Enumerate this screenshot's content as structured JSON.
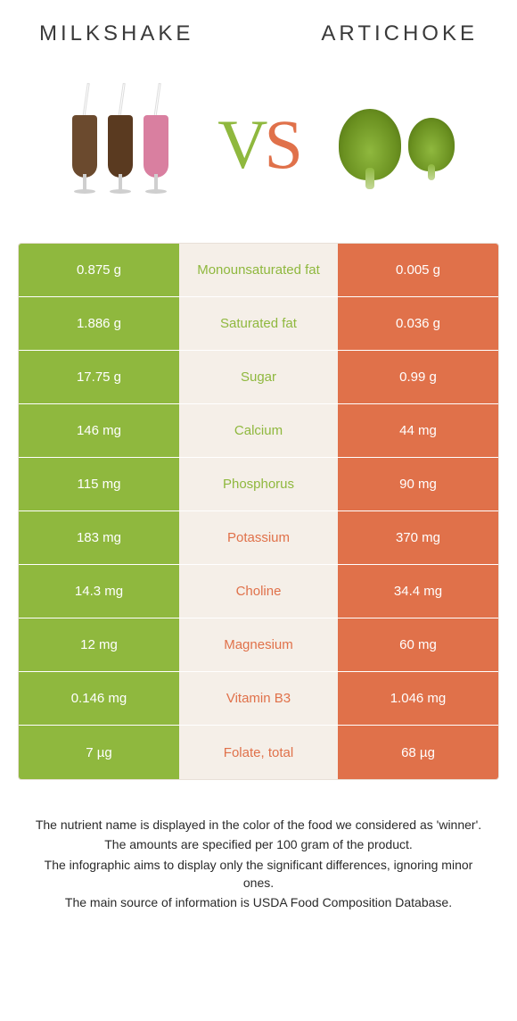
{
  "colors": {
    "green": "#8fb83e",
    "orange": "#e0714a",
    "beige": "#f5efe8",
    "text_dark": "#3a3a3a",
    "white": "#ffffff"
  },
  "header": {
    "left_title": "MILKSHAKE",
    "right_title": "ARTICHOKE"
  },
  "vs": {
    "v": "V",
    "s": "S"
  },
  "milkshake_colors": [
    "#6b4a2e",
    "#5a3a20",
    "#d97fa0"
  ],
  "rows": [
    {
      "left": "0.875 g",
      "label": "Monounsaturated fat",
      "right": "0.005 g",
      "winner": "left"
    },
    {
      "left": "1.886 g",
      "label": "Saturated fat",
      "right": "0.036 g",
      "winner": "left"
    },
    {
      "left": "17.75 g",
      "label": "Sugar",
      "right": "0.99 g",
      "winner": "left"
    },
    {
      "left": "146 mg",
      "label": "Calcium",
      "right": "44 mg",
      "winner": "left"
    },
    {
      "left": "115 mg",
      "label": "Phosphorus",
      "right": "90 mg",
      "winner": "left"
    },
    {
      "left": "183 mg",
      "label": "Potassium",
      "right": "370 mg",
      "winner": "right"
    },
    {
      "left": "14.3 mg",
      "label": "Choline",
      "right": "34.4 mg",
      "winner": "right"
    },
    {
      "left": "12 mg",
      "label": "Magnesium",
      "right": "60 mg",
      "winner": "right"
    },
    {
      "left": "0.146 mg",
      "label": "Vitamin B3",
      "right": "1.046 mg",
      "winner": "right"
    },
    {
      "left": "7 µg",
      "label": "Folate, total",
      "right": "68 µg",
      "winner": "right"
    }
  ],
  "footer": {
    "line1": "The nutrient name is displayed in the color of the food we considered as 'winner'.",
    "line2": "The amounts are specified per 100 gram of the product.",
    "line3": "The infographic aims to display only the significant differences, ignoring minor ones.",
    "line4": "The main source of information is USDA Food Composition Database."
  }
}
